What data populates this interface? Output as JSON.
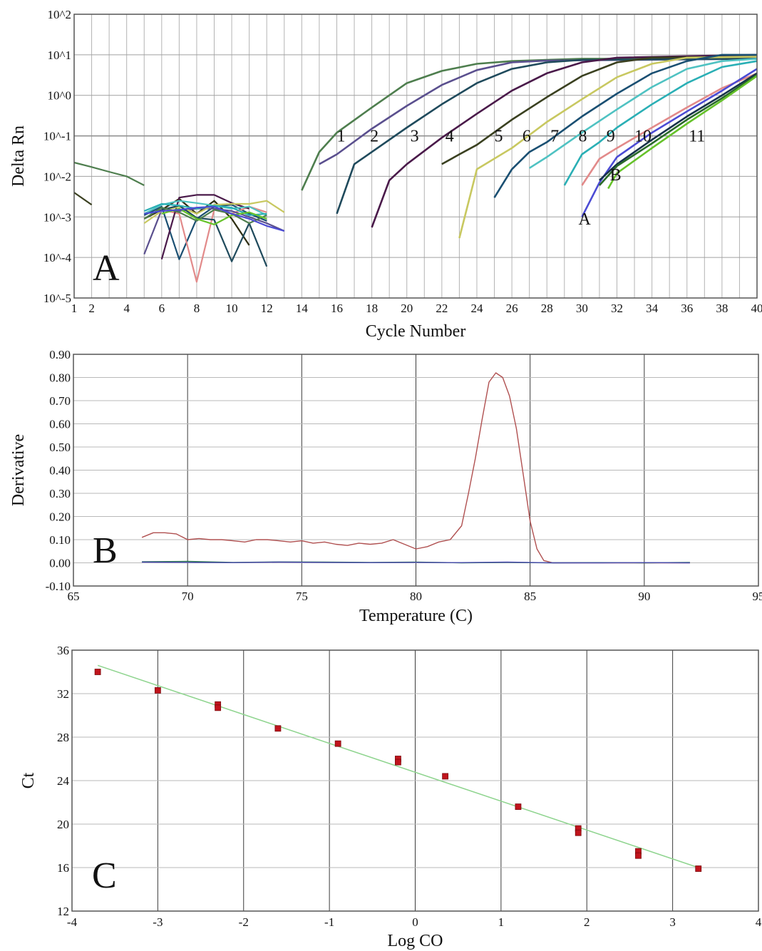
{
  "chart_data": [
    {
      "panel": "A",
      "type": "line",
      "xlabel": "Cycle Number",
      "ylabel": "Delta Rn",
      "yscale": "log",
      "xlim": [
        1,
        40
      ],
      "ylim": [
        1e-05,
        100
      ],
      "x_ticks": [
        "1",
        "2",
        "4",
        "6",
        "8",
        "10",
        "12",
        "14",
        "16",
        "18",
        "20",
        "22",
        "24",
        "26",
        "28",
        "30",
        "32",
        "34",
        "36",
        "38",
        "40"
      ],
      "y_ticks": [
        "10^2",
        "10^1",
        "10^0",
        "10^-1",
        "10^-2",
        "10^-3",
        "10^-4",
        "10^-5"
      ],
      "threshold": 0.1,
      "grid": true,
      "annotations": [
        "1",
        "2",
        "3",
        "4",
        "5",
        "6",
        "7",
        "8",
        "9",
        "10",
        "11",
        "A",
        "B"
      ],
      "series": [
        {
          "label": "1",
          "color": "#4e7e4e",
          "x": [
            14,
            15,
            16,
            18,
            20,
            22,
            24,
            26,
            30,
            40
          ],
          "y": [
            0.0045,
            0.04,
            0.12,
            0.5,
            2.0,
            4.0,
            6.0,
            7.0,
            8.0,
            8.0
          ]
        },
        {
          "label": "2",
          "color": "#5a4f8e",
          "x": [
            15,
            16,
            18,
            20,
            22,
            24,
            26,
            28,
            40
          ],
          "y": [
            0.02,
            0.035,
            0.15,
            0.55,
            1.8,
            4.2,
            6.5,
            7.2,
            8.0
          ]
        },
        {
          "label": "3",
          "color": "#1f4a5c",
          "x": [
            16,
            17,
            18,
            20,
            22,
            24,
            26,
            28,
            30,
            40
          ],
          "y": [
            0.0012,
            0.02,
            0.04,
            0.16,
            0.6,
            2.0,
            4.5,
            6.5,
            7.5,
            8.0
          ]
        },
        {
          "label": "4",
          "color": "#4a1a4a",
          "x": [
            18,
            19,
            20,
            22,
            24,
            26,
            28,
            30,
            32,
            40
          ],
          "y": [
            0.00055,
            0.008,
            0.02,
            0.09,
            0.35,
            1.3,
            3.5,
            6.5,
            8.5,
            10.0
          ]
        },
        {
          "label": "5",
          "color": "#3a4020",
          "x": [
            22,
            23,
            24,
            26,
            28,
            30,
            32,
            34,
            40
          ],
          "y": [
            0.02,
            0.035,
            0.06,
            0.25,
            0.9,
            3.0,
            6.5,
            8.5,
            9.0
          ]
        },
        {
          "label": "6",
          "color": "#c8c860",
          "x": [
            23,
            24,
            26,
            28,
            30,
            32,
            34,
            36,
            40
          ],
          "y": [
            0.0003,
            0.015,
            0.05,
            0.22,
            0.8,
            2.8,
            6.0,
            8.5,
            9.0
          ]
        },
        {
          "label": "7",
          "color": "#1a4f72",
          "x": [
            25,
            26,
            27,
            28,
            30,
            32,
            34,
            36,
            38,
            40
          ],
          "y": [
            0.003,
            0.015,
            0.04,
            0.07,
            0.3,
            1.1,
            3.5,
            7.0,
            10.0,
            10.0
          ]
        },
        {
          "label": "8",
          "color": "#4fc2c2",
          "x": [
            27,
            28,
            30,
            32,
            34,
            36,
            38,
            40
          ],
          "y": [
            0.016,
            0.03,
            0.12,
            0.45,
            1.6,
            4.5,
            7.0,
            8.0
          ]
        },
        {
          "label": "9",
          "color": "#2aafb5",
          "x": [
            29,
            30,
            31,
            32,
            34,
            36,
            38,
            40
          ],
          "y": [
            0.006,
            0.035,
            0.07,
            0.16,
            0.6,
            2.0,
            5.0,
            7.0
          ]
        },
        {
          "label": "10",
          "color": "#e28a8a",
          "x": [
            30,
            31,
            32,
            34,
            36,
            38,
            40
          ],
          "y": [
            0.006,
            0.027,
            0.05,
            0.16,
            0.5,
            1.5,
            3.5
          ]
        },
        {
          "label": "A",
          "color": "#4b4bd4",
          "x": [
            30,
            31,
            32,
            34,
            36,
            38,
            40
          ],
          "y": [
            0.001,
            0.007,
            0.03,
            0.12,
            0.4,
            1.3,
            4.5
          ]
        },
        {
          "label": "B",
          "color": "#16324a",
          "x": [
            31,
            32,
            34,
            36,
            38,
            40
          ],
          "y": [
            0.008,
            0.02,
            0.08,
            0.3,
            1.0,
            3.5
          ]
        },
        {
          "label": "11",
          "color": "#2a6a2a",
          "x": [
            31,
            32,
            34,
            36,
            38,
            40
          ],
          "y": [
            0.006,
            0.018,
            0.065,
            0.25,
            0.85,
            3.2
          ]
        },
        {
          "label": "",
          "color": "#66c22a",
          "x": [
            31.5,
            32,
            34,
            36,
            38,
            40
          ],
          "y": [
            0.005,
            0.012,
            0.05,
            0.2,
            0.75,
            3.0
          ]
        },
        {
          "label": "",
          "color": "#4e7e4e",
          "x": [
            1,
            2,
            3,
            4,
            5
          ],
          "y": [
            0.022,
            0.017,
            0.013,
            0.01,
            0.006
          ]
        },
        {
          "label": "",
          "color": "#3a4020",
          "x": [
            1,
            2
          ],
          "y": [
            0.004,
            0.002
          ]
        },
        {
          "label": "",
          "color": "#2d2d10",
          "x": [
            5,
            6,
            7,
            8,
            9,
            10,
            11
          ],
          "y": [
            0.0009,
            0.0015,
            0.0028,
            0.0012,
            0.0025,
            0.0009,
            0.0002
          ]
        },
        {
          "label": "",
          "color": "#1a4f72",
          "x": [
            5,
            6,
            7,
            8,
            9,
            10,
            11,
            12
          ],
          "y": [
            0.0011,
            0.0018,
            9e-05,
            0.0009,
            0.0018,
            0.002,
            0.0012,
            0.0008
          ]
        },
        {
          "label": "",
          "color": "#e28a8a",
          "x": [
            6,
            7,
            8,
            9,
            10,
            11,
            12
          ],
          "y": [
            0.0015,
            0.0012,
            2.5e-05,
            0.0015,
            0.0012,
            0.0018,
            0.0013
          ]
        },
        {
          "label": "",
          "color": "#4a1a4a",
          "x": [
            6,
            7,
            8,
            9,
            10,
            11
          ],
          "y": [
            9e-05,
            0.003,
            0.0035,
            0.0035,
            0.0022,
            0.0016
          ]
        },
        {
          "label": "",
          "color": "#4fc2c2",
          "x": [
            5,
            6,
            7,
            8,
            9,
            10,
            11,
            12
          ],
          "y": [
            0.0012,
            0.002,
            0.0025,
            0.0022,
            0.0019,
            0.0016,
            0.0018,
            0.0011
          ]
        },
        {
          "label": "",
          "color": "#5a4f8e",
          "x": [
            5,
            6,
            7,
            8,
            9,
            10,
            11,
            12,
            13
          ],
          "y": [
            0.00012,
            0.0015,
            0.0014,
            0.0016,
            0.0016,
            0.0014,
            0.001,
            0.0007,
            0.00045
          ]
        },
        {
          "label": "",
          "color": "#c8c860",
          "x": [
            5,
            6,
            7,
            8,
            9,
            10,
            11,
            12,
            13
          ],
          "y": [
            0.0007,
            0.0014,
            0.0018,
            0.0012,
            0.002,
            0.0021,
            0.0021,
            0.0025,
            0.0013
          ]
        },
        {
          "label": "",
          "color": "#1f4a5c",
          "x": [
            6,
            7,
            8,
            9,
            10,
            11,
            12
          ],
          "y": [
            0.0015,
            0.0019,
            0.00095,
            0.00085,
            8e-05,
            0.0007,
            6e-05
          ]
        },
        {
          "label": "",
          "color": "#4e7e4e",
          "x": [
            5,
            6,
            7,
            8,
            9,
            10,
            11,
            12
          ],
          "y": [
            0.0009,
            0.0017,
            0.0013,
            0.0008,
            0.0015,
            0.0012,
            0.0007,
            0.0011
          ]
        },
        {
          "label": "",
          "color": "#2aafb5",
          "x": [
            5,
            6,
            7,
            8,
            9,
            10,
            11,
            12
          ],
          "y": [
            0.0014,
            0.0021,
            0.0019,
            0.0016,
            0.0019,
            0.0017,
            0.0011,
            0.0012
          ]
        },
        {
          "label": "",
          "color": "#66c22a",
          "x": [
            6,
            7,
            8,
            9,
            10,
            11,
            12
          ],
          "y": [
            0.0012,
            0.0016,
            0.0009,
            0.00065,
            0.0011,
            0.0013,
            0.0009
          ]
        },
        {
          "label": "",
          "color": "#4b4bd4",
          "x": [
            5,
            6,
            7,
            8,
            9,
            10,
            11,
            12,
            13
          ],
          "y": [
            0.0012,
            0.0014,
            0.0015,
            0.0017,
            0.0018,
            0.0012,
            0.0009,
            0.0006,
            0.00045
          ]
        }
      ]
    },
    {
      "panel": "B",
      "type": "line",
      "xlabel": "Temperature (C)",
      "ylabel": "Derivative",
      "xlim": [
        65,
        95
      ],
      "ylim": [
        -0.1,
        0.9
      ],
      "x_ticks": [
        "65",
        "70",
        "75",
        "80",
        "85",
        "90",
        "95"
      ],
      "y_ticks": [
        "0.90",
        "0.80",
        "0.70",
        "0.60",
        "0.50",
        "0.40",
        "0.30",
        "0.20",
        "0.10",
        "0.00",
        "-0.10"
      ],
      "grid": true,
      "series": [
        {
          "color": "#b05050",
          "x": [
            68.0,
            68.5,
            69.0,
            69.5,
            70.0,
            70.5,
            71.0,
            71.5,
            72.0,
            72.5,
            73.0,
            73.5,
            74.0,
            74.5,
            75.0,
            75.5,
            76.0,
            76.5,
            77.0,
            77.5,
            78.0,
            78.5,
            79.0,
            79.5,
            80.0,
            80.5,
            81.0,
            81.5,
            82.0,
            82.3,
            82.6,
            82.9,
            83.2,
            83.5,
            83.8,
            84.1,
            84.4,
            84.7,
            85.0,
            85.3,
            85.6,
            86.0,
            87.0,
            88.0,
            90.0,
            92.0
          ],
          "y": [
            0.11,
            0.13,
            0.13,
            0.125,
            0.1,
            0.105,
            0.1,
            0.1,
            0.095,
            0.09,
            0.1,
            0.1,
            0.095,
            0.09,
            0.095,
            0.085,
            0.09,
            0.08,
            0.075,
            0.085,
            0.08,
            0.085,
            0.1,
            0.08,
            0.06,
            0.07,
            0.09,
            0.1,
            0.16,
            0.3,
            0.45,
            0.62,
            0.78,
            0.82,
            0.8,
            0.72,
            0.58,
            0.38,
            0.18,
            0.06,
            0.01,
            0.0,
            0.0,
            0.0,
            0.0,
            0.0
          ]
        },
        {
          "color": "#2a7a4a",
          "x": [
            68,
            70,
            72,
            74,
            76,
            78,
            80,
            82,
            84,
            86,
            88,
            90,
            92
          ],
          "y": [
            0.005,
            0.006,
            0.002,
            0.004,
            0.003,
            0.002,
            0.003,
            0.0,
            0.002,
            0.0,
            0.001,
            0.0,
            0.002
          ]
        },
        {
          "color": "#4a4ab0",
          "x": [
            68,
            70,
            72,
            74,
            76,
            78,
            80,
            82,
            84,
            86,
            88,
            90,
            92
          ],
          "y": [
            0.003,
            0.002,
            0.001,
            0.003,
            0.002,
            0.001,
            0.002,
            0.001,
            0.003,
            0.0,
            0.0,
            0.001,
            0.0
          ]
        }
      ]
    },
    {
      "panel": "C",
      "type": "scatter",
      "xlabel": "Log CO",
      "ylabel": "Ct",
      "xlim": [
        -4,
        4
      ],
      "ylim": [
        12,
        36
      ],
      "x_ticks": [
        "-4",
        "-3",
        "-2",
        "-1",
        "0",
        "1",
        "2",
        "3",
        "4"
      ],
      "y_ticks": [
        "36",
        "32",
        "28",
        "24",
        "20",
        "16",
        "12"
      ],
      "grid": true,
      "marker_color": "#c0141c",
      "line_color": "#8ed48e",
      "fit_line": {
        "x": [
          -3.7,
          3.3
        ],
        "y": [
          34.6,
          16.0
        ]
      },
      "points": [
        {
          "x": -3.7,
          "y": 34.0
        },
        {
          "x": -3.0,
          "y": 32.3
        },
        {
          "x": -2.3,
          "y": 31.0
        },
        {
          "x": -2.3,
          "y": 30.7
        },
        {
          "x": -1.6,
          "y": 28.8
        },
        {
          "x": -0.9,
          "y": 27.4
        },
        {
          "x": -0.2,
          "y": 26.0
        },
        {
          "x": -0.2,
          "y": 25.7
        },
        {
          "x": 0.35,
          "y": 24.4
        },
        {
          "x": 1.2,
          "y": 21.6
        },
        {
          "x": 1.9,
          "y": 19.6
        },
        {
          "x": 1.9,
          "y": 19.2
        },
        {
          "x": 2.6,
          "y": 17.5
        },
        {
          "x": 2.6,
          "y": 17.1
        },
        {
          "x": 3.3,
          "y": 15.9
        }
      ]
    }
  ]
}
